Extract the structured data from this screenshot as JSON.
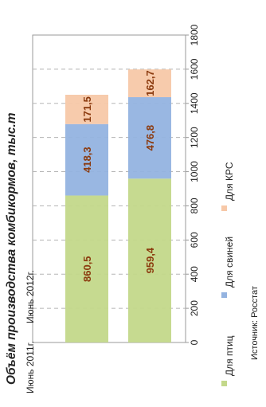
{
  "chart_data": {
    "type": "bar",
    "orientation": "horizontal",
    "stacked": true,
    "title": "Объём производства комбикормов, тыс.т",
    "categories": [
      "Июнь 2011г.",
      "Июнь 2012г."
    ],
    "series": [
      {
        "name": "Для птиц",
        "values": [
          860.5,
          959.4
        ],
        "labels": [
          "860,5",
          "959,4"
        ],
        "color": "#c3d88a"
      },
      {
        "name": "Для свиней",
        "values": [
          418.3,
          476.8
        ],
        "labels": [
          "418,3",
          "476,8"
        ],
        "color": "#94b3e0"
      },
      {
        "name": "Для КРС",
        "values": [
          171.5,
          162.7
        ],
        "labels": [
          "171,5",
          "162,7"
        ],
        "color": "#f7c8a8"
      }
    ],
    "xlim": [
      0,
      1800
    ],
    "ticks": [
      "0",
      "200",
      "400",
      "600",
      "800",
      "1000",
      "1200",
      "1400",
      "1600",
      "1800"
    ],
    "tick_values": [
      0,
      200,
      400,
      600,
      800,
      1000,
      1200,
      1400,
      1600,
      1800
    ],
    "grid": true,
    "legend_position": "bottom",
    "label_color": "#8b3a0e"
  },
  "source": "Источник: Росстат"
}
